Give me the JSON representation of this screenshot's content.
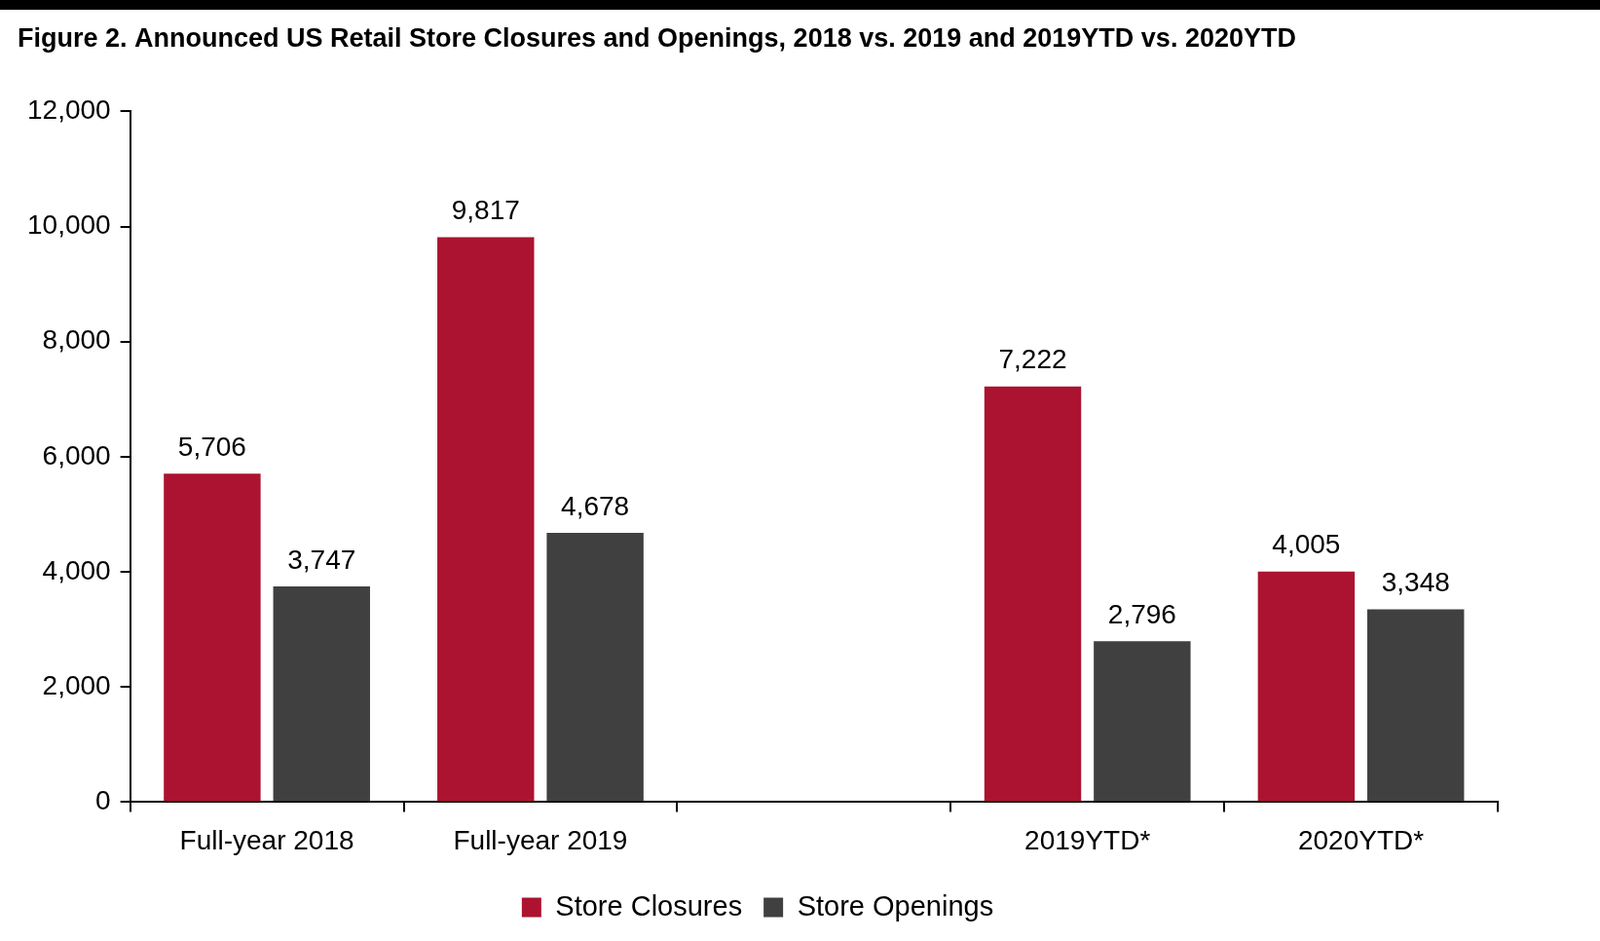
{
  "chart_data": {
    "type": "bar",
    "title": "Figure 2. Announced US Retail Store Closures and Openings, 2018 vs. 2019 and 2019YTD vs. 2020YTD",
    "categories": [
      "Full-year 2018",
      "Full-year 2019",
      null,
      "2019YTD*",
      "2020YTD*"
    ],
    "series": [
      {
        "name": "Store Closures",
        "color": "#ac1330",
        "values": [
          5706,
          9817,
          null,
          7222,
          4005
        ],
        "value_labels": [
          "5,706",
          "9,817",
          null,
          "7,222",
          "4,005"
        ]
      },
      {
        "name": "Store Openings",
        "color": "#404040",
        "values": [
          3747,
          4678,
          null,
          2796,
          3348
        ],
        "value_labels": [
          "3,747",
          "4,678",
          null,
          "2,796",
          "3,348"
        ]
      }
    ],
    "ylim": [
      0,
      12000
    ],
    "yticks": [
      0,
      {
        "value": 2000,
        "label": "2,000"
      },
      {
        "value": 4000,
        "label": "4,000"
      },
      {
        "value": 6000,
        "label": "6,000"
      },
      {
        "value": 8000,
        "label": "8,000"
      },
      {
        "value": 10000,
        "label": "10,000"
      },
      {
        "value": 12000,
        "label": "12,000"
      }
    ],
    "grid": false,
    "legend": "bottom",
    "data_labels": true
  }
}
